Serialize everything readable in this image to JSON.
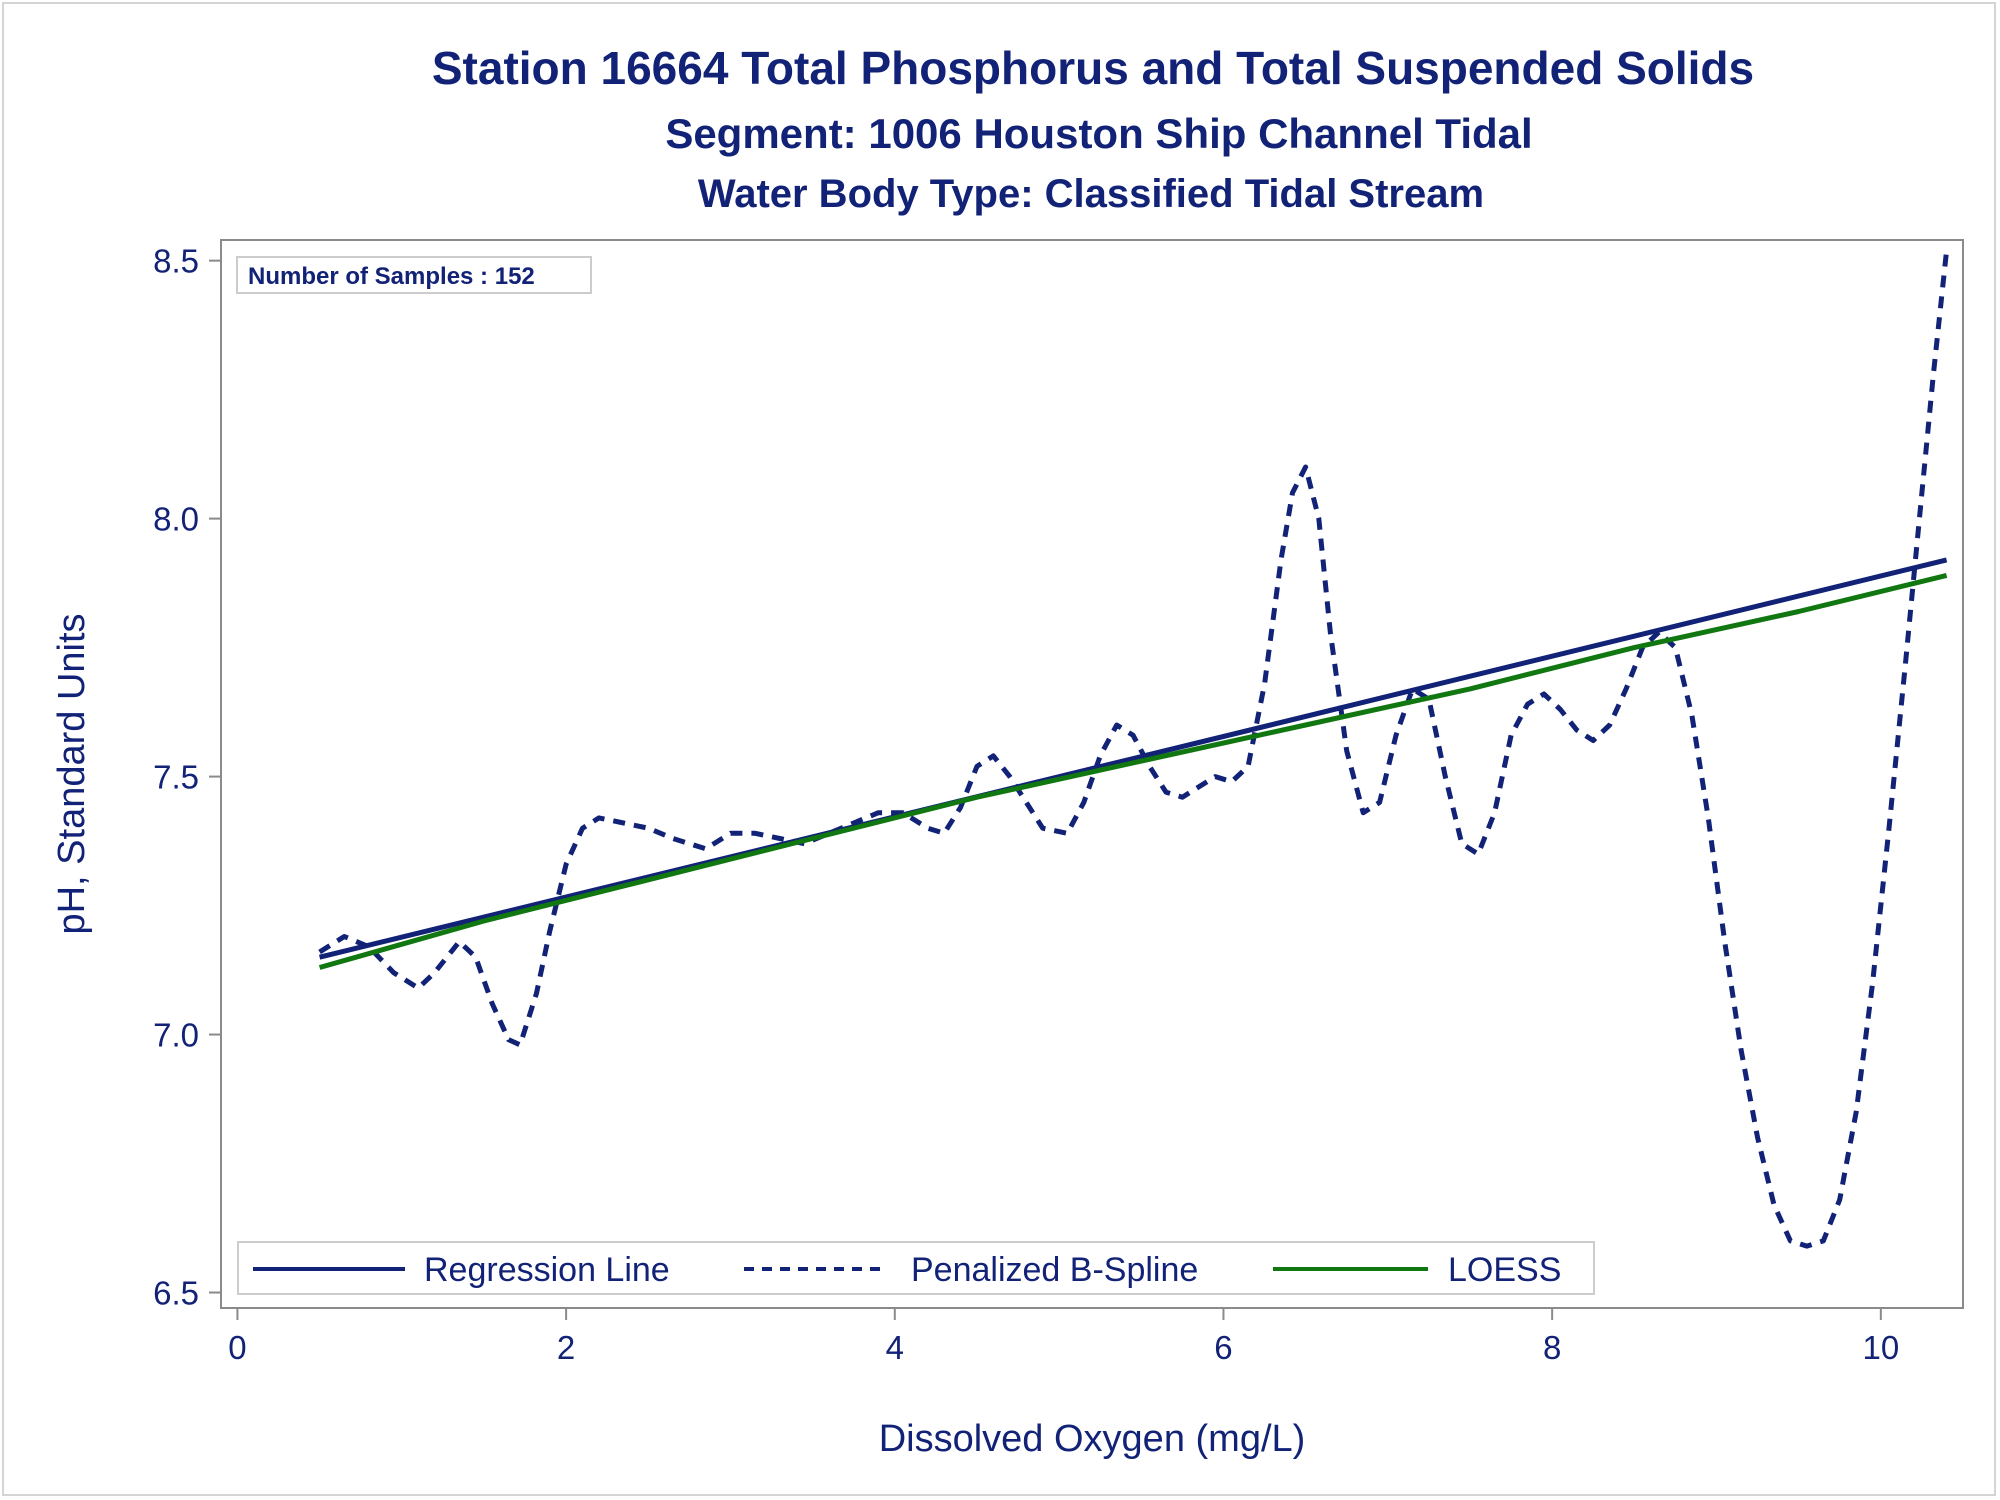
{
  "chart_data": {
    "type": "line",
    "title": "Station 16664  Total Phosphorus and Total Suspended Solids",
    "subtitle": "Segment: 1006  Houston Ship Channel Tidal",
    "subtitle2": "Water Body Type: Classified Tidal Stream",
    "xlabel": "Dissolved Oxygen (mg/L)",
    "ylabel": "pH, Standard Units",
    "xlim": [
      -0.1,
      10.5
    ],
    "ylim": [
      6.47,
      8.54
    ],
    "xticks": [
      "0",
      "2",
      "4",
      "6",
      "8",
      "10"
    ],
    "xtick_values": [
      0,
      2,
      4,
      6,
      8,
      10
    ],
    "yticks": [
      "6.5",
      "7.0",
      "7.5",
      "8.0",
      "8.5"
    ],
    "ytick_values": [
      6.5,
      7.0,
      7.5,
      8.0,
      8.5
    ],
    "grid": false,
    "legend_position": "bottom-left",
    "inset": "Number of Samples : 152",
    "series": [
      {
        "name": "Regression Line",
        "style": "solid",
        "color": "#112277",
        "x": [
          0.5,
          10.4
        ],
        "y": [
          7.15,
          7.92
        ]
      },
      {
        "name": "Penalized B-Spline",
        "style": "dashed",
        "color": "#112277",
        "x": [
          0.5,
          0.65,
          0.8,
          0.95,
          1.1,
          1.2,
          1.35,
          1.45,
          1.55,
          1.65,
          1.72,
          1.82,
          1.9,
          2.0,
          2.1,
          2.2,
          2.35,
          2.5,
          2.65,
          2.85,
          3.0,
          3.15,
          3.3,
          3.45,
          3.6,
          3.75,
          3.9,
          4.05,
          4.2,
          4.3,
          4.4,
          4.5,
          4.6,
          4.7,
          4.8,
          4.9,
          5.05,
          5.15,
          5.25,
          5.35,
          5.45,
          5.55,
          5.65,
          5.75,
          5.85,
          5.95,
          6.05,
          6.15,
          6.25,
          6.35,
          6.42,
          6.5,
          6.58,
          6.65,
          6.75,
          6.85,
          6.95,
          7.05,
          7.15,
          7.25,
          7.35,
          7.45,
          7.55,
          7.65,
          7.75,
          7.85,
          7.95,
          8.05,
          8.15,
          8.25,
          8.35,
          8.45,
          8.55,
          8.65,
          8.75,
          8.85,
          8.95,
          9.05,
          9.15,
          9.25,
          9.35,
          9.45,
          9.55,
          9.65,
          9.75,
          9.85,
          9.95,
          10.05,
          10.15,
          10.25,
          10.32,
          10.4
        ],
        "y": [
          7.16,
          7.19,
          7.17,
          7.12,
          7.09,
          7.12,
          7.18,
          7.15,
          7.06,
          6.99,
          6.98,
          7.08,
          7.2,
          7.33,
          7.4,
          7.42,
          7.41,
          7.4,
          7.38,
          7.36,
          7.39,
          7.39,
          7.38,
          7.37,
          7.39,
          7.41,
          7.43,
          7.43,
          7.4,
          7.39,
          7.44,
          7.52,
          7.54,
          7.5,
          7.45,
          7.4,
          7.39,
          7.45,
          7.54,
          7.6,
          7.58,
          7.52,
          7.47,
          7.46,
          7.48,
          7.5,
          7.49,
          7.52,
          7.68,
          7.92,
          8.05,
          8.1,
          8.0,
          7.78,
          7.55,
          7.43,
          7.45,
          7.58,
          7.67,
          7.65,
          7.5,
          7.37,
          7.35,
          7.43,
          7.58,
          7.64,
          7.66,
          7.63,
          7.59,
          7.57,
          7.6,
          7.67,
          7.75,
          7.78,
          7.75,
          7.62,
          7.42,
          7.18,
          6.97,
          6.8,
          6.67,
          6.6,
          6.59,
          6.6,
          6.68,
          6.85,
          7.1,
          7.4,
          7.72,
          8.05,
          8.28,
          8.52
        ]
      },
      {
        "name": "LOESS",
        "style": "solid",
        "color": "#117711",
        "x": [
          0.5,
          1.5,
          2.5,
          3.5,
          4.5,
          5.5,
          6.5,
          7.5,
          8.5,
          9.5,
          10.4
        ],
        "y": [
          7.13,
          7.22,
          7.3,
          7.38,
          7.46,
          7.53,
          7.6,
          7.67,
          7.75,
          7.82,
          7.89
        ]
      }
    ]
  }
}
